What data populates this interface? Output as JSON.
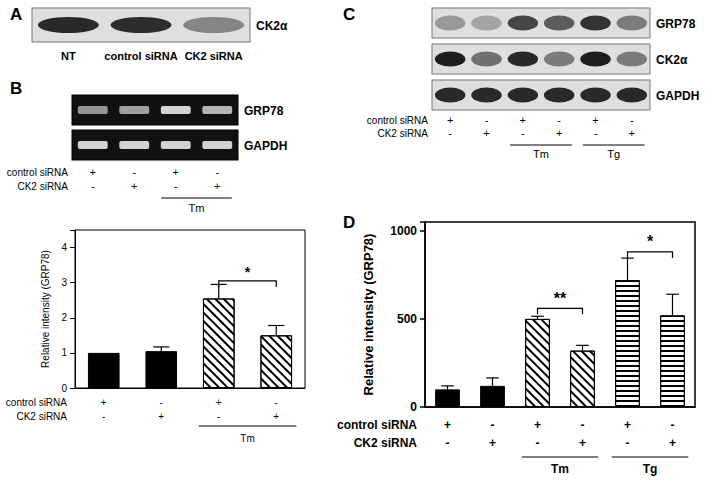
{
  "figure": {
    "panel_labels": [
      "A",
      "B",
      "C",
      "D"
    ],
    "blots": [
      {
        "kind": "blot",
        "rows": [
          {
            "label": "CK2α",
            "intensity": [
              0.9,
              0.88,
              0.45
            ]
          }
        ],
        "lane_labels": [
          "NT",
          "control siRNA",
          "CK2 siRNA"
        ]
      },
      {
        "kind": "gel",
        "rows": [
          {
            "label": "GRP78",
            "intensity": [
              0.55,
              0.6,
              0.85,
              0.7
            ]
          },
          {
            "label": "GAPDH",
            "intensity": [
              0.85,
              0.85,
              0.85,
              0.85
            ]
          }
        ],
        "table": {
          "rows": [
            {
              "label": "control siRNA",
              "marks": [
                "+",
                "-",
                "+",
                "-"
              ]
            },
            {
              "label": "CK2 siRNA",
              "marks": [
                "-",
                "+",
                "-",
                "+"
              ]
            }
          ],
          "groups": [
            {
              "label": "Tm",
              "from": 2,
              "to": 3
            }
          ]
        }
      },
      {
        "kind": "blot",
        "rows": [
          {
            "label": "GRP78",
            "intensity": [
              0.35,
              0.3,
              0.75,
              0.65,
              0.85,
              0.5
            ]
          },
          {
            "label": "CK2α",
            "intensity": [
              0.95,
              0.55,
              0.9,
              0.5,
              0.95,
              0.5
            ]
          },
          {
            "label": "GAPDH",
            "intensity": [
              0.9,
              0.9,
              0.9,
              0.9,
              0.9,
              0.9
            ]
          }
        ],
        "table": {
          "rows": [
            {
              "label": "control siRNA",
              "marks": [
                "+",
                "-",
                "+",
                "-",
                "+",
                "-"
              ]
            },
            {
              "label": "CK2 siRNA",
              "marks": [
                "-",
                "+",
                "-",
                "+",
                "-",
                "+"
              ]
            }
          ],
          "groups": [
            {
              "label": "Tm",
              "from": 2,
              "to": 3
            },
            {
              "label": "Tg",
              "from": 4,
              "to": 5
            }
          ]
        }
      }
    ]
  },
  "chart_data": [
    {
      "type": "bar",
      "ylabel": "Relative intensity (GRP78)",
      "categories": [
        null,
        null,
        null,
        null
      ],
      "values": [
        1,
        1.05,
        2.55,
        1.5
      ],
      "errors": [
        null,
        0.12,
        0.4,
        0.28
      ],
      "colors": [
        "#000000",
        "#000000",
        "#ffffff",
        "#ffffff"
      ],
      "ylim": [
        0,
        4.5
      ],
      "yticks": [
        0,
        1,
        2,
        3,
        4
      ],
      "grid": false,
      "x_table": {
        "rows": [
          {
            "label": "control siRNA",
            "marks": [
              "+",
              "-",
              "+",
              "-"
            ]
          },
          {
            "label": "CK2 siRNA",
            "marks": [
              "-",
              "+",
              "-",
              "+"
            ]
          }
        ],
        "groups": [
          {
            "label": "Tm",
            "from": 2,
            "to": 3
          }
        ]
      },
      "annotations": [
        {
          "from": 2,
          "to": 3,
          "y": 3.05,
          "label": "*"
        }
      ]
    },
    {
      "type": "bar",
      "ylabel": "Relative intensity (GRP78)",
      "categories": [
        null,
        null,
        null,
        null,
        null,
        null
      ],
      "values": [
        100,
        120,
        500,
        320,
        720,
        520
      ],
      "errors": [
        20,
        45,
        15,
        30,
        125,
        120
      ],
      "colors": [
        "#000000",
        "#000000",
        "#ffffff",
        "#ffffff",
        "#ffffff",
        "#ffffff"
      ],
      "ylim": [
        0,
        1050
      ],
      "yticks": [
        0,
        500,
        1000
      ],
      "grid": false,
      "x_table": {
        "rows": [
          {
            "label": "control siRNA",
            "marks": [
              "+",
              "-",
              "+",
              "-",
              "+",
              "-"
            ]
          },
          {
            "label": "CK2 siRNA",
            "marks": [
              "-",
              "+",
              "-",
              "+",
              "-",
              "+"
            ]
          }
        ],
        "groups": [
          {
            "label": "Tm",
            "from": 2,
            "to": 3
          },
          {
            "label": "Tg",
            "from": 4,
            "to": 5
          }
        ]
      },
      "annotations": [
        {
          "from": 2,
          "to": 3,
          "y": 560,
          "label": "**"
        },
        {
          "from": 4,
          "to": 5,
          "y": 880,
          "label": "*"
        }
      ]
    }
  ]
}
